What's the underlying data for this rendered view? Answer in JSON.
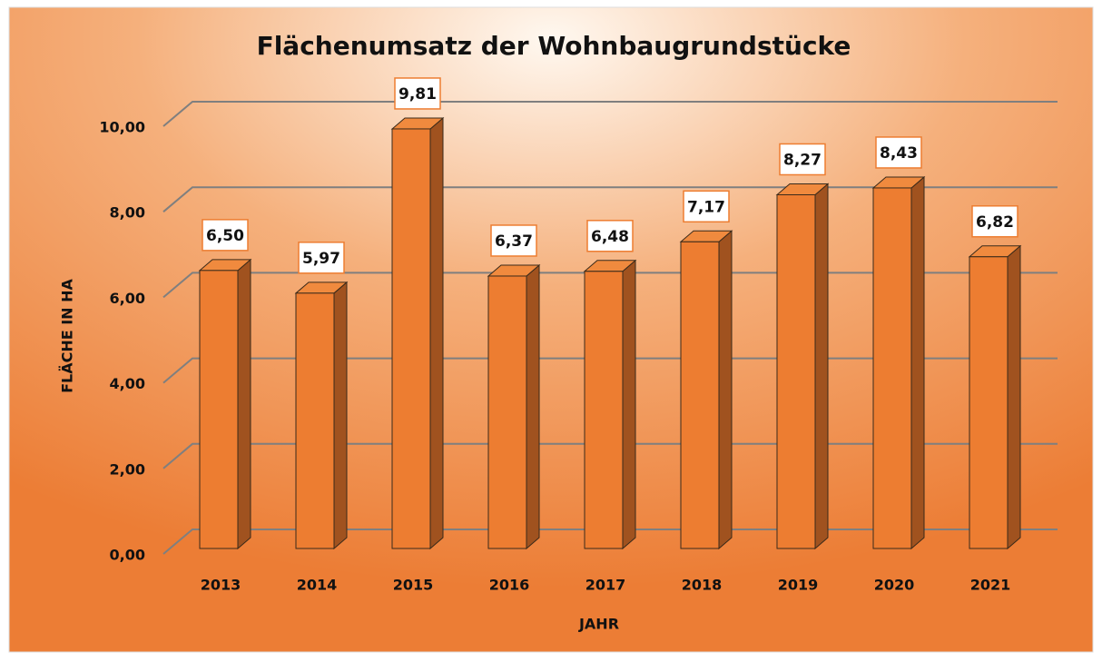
{
  "chart_data": {
    "type": "bar3d",
    "title": "Flächenumsatz der Wohnbaugrundstücke",
    "x_label": "JAHR",
    "y_label": "FLÄCHE IN HA",
    "categories": [
      "2013",
      "2014",
      "2015",
      "2016",
      "2017",
      "2018",
      "2019",
      "2020",
      "2021"
    ],
    "values": [
      6.5,
      5.97,
      9.81,
      6.37,
      6.48,
      7.17,
      8.27,
      8.43,
      6.82
    ],
    "value_labels": [
      "6,50",
      "5,97",
      "9,81",
      "6,37",
      "6,48",
      "7,17",
      "8,27",
      "8,43",
      "6,82"
    ],
    "color": "#ed7d31",
    "ylim": [
      0,
      10.4
    ],
    "yticks": [
      {
        "value": 0,
        "label": "0,00"
      },
      {
        "value": 2,
        "label": "2,00"
      },
      {
        "value": 4,
        "label": "4,00"
      },
      {
        "value": 6,
        "label": "6,00"
      },
      {
        "value": 8,
        "label": "8,00"
      },
      {
        "value": 10,
        "label": "10,00"
      }
    ],
    "grid": true
  }
}
